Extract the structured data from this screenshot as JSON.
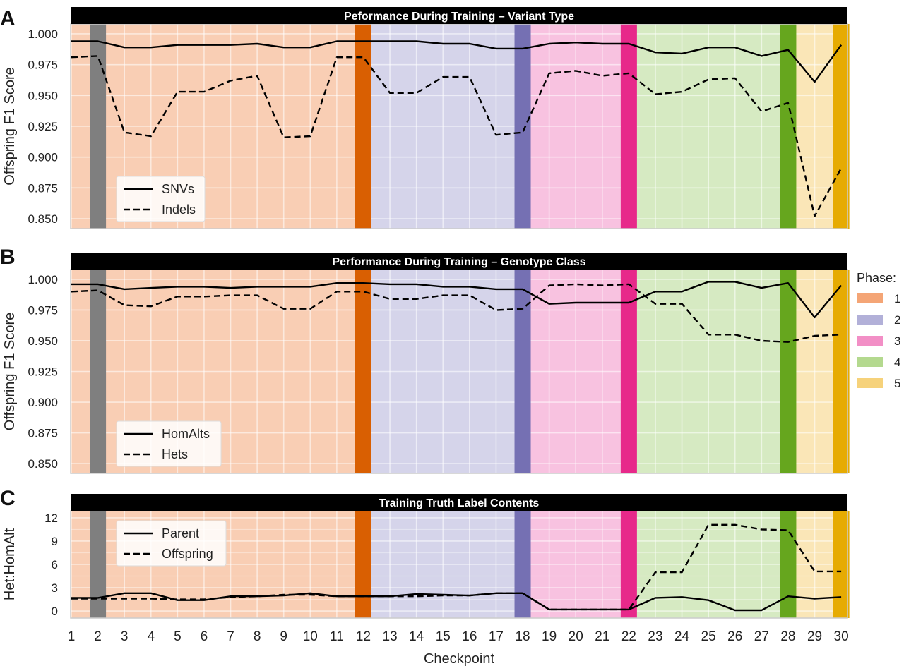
{
  "chart_data": [
    {
      "panel": "A",
      "type": "line",
      "title": "Peformance During Training – Variant Type",
      "ylabel": "Offspring F1 Score",
      "xlabel": "",
      "yticks": [
        "0.850",
        "0.875",
        "0.900",
        "0.925",
        "0.950",
        "0.975",
        "1.000"
      ],
      "ylim": [
        0.842,
        1.008
      ],
      "legend_position": "lower-left",
      "x": [
        1,
        2,
        3,
        4,
        5,
        6,
        7,
        8,
        9,
        10,
        11,
        12,
        13,
        14,
        15,
        16,
        17,
        18,
        19,
        20,
        21,
        22,
        23,
        24,
        25,
        26,
        27,
        28,
        29,
        30
      ],
      "series": [
        {
          "name": "SNVs",
          "style": "solid",
          "values": [
            0.994,
            0.994,
            0.989,
            0.989,
            0.991,
            0.991,
            0.991,
            0.992,
            0.989,
            0.989,
            0.994,
            0.994,
            0.994,
            0.994,
            0.992,
            0.992,
            0.988,
            0.988,
            0.992,
            0.993,
            0.992,
            0.992,
            0.985,
            0.984,
            0.989,
            0.989,
            0.982,
            0.987,
            0.961,
            0.991
          ]
        },
        {
          "name": "Indels",
          "style": "dashed",
          "values": [
            0.981,
            0.982,
            0.92,
            0.917,
            0.953,
            0.953,
            0.962,
            0.966,
            0.916,
            0.917,
            0.981,
            0.981,
            0.952,
            0.952,
            0.965,
            0.965,
            0.918,
            0.92,
            0.968,
            0.97,
            0.966,
            0.968,
            0.951,
            0.953,
            0.963,
            0.964,
            0.937,
            0.944,
            0.852,
            0.891
          ]
        }
      ]
    },
    {
      "panel": "B",
      "type": "line",
      "title": "Performance During Training – Genotype Class",
      "ylabel": "Offspring F1 Score",
      "xlabel": "",
      "yticks": [
        "0.850",
        "0.875",
        "0.900",
        "0.925",
        "0.950",
        "0.975",
        "1.000"
      ],
      "ylim": [
        0.842,
        1.008
      ],
      "legend_position": "lower-left",
      "x": [
        1,
        2,
        3,
        4,
        5,
        6,
        7,
        8,
        9,
        10,
        11,
        12,
        13,
        14,
        15,
        16,
        17,
        18,
        19,
        20,
        21,
        22,
        23,
        24,
        25,
        26,
        27,
        28,
        29,
        30
      ],
      "series": [
        {
          "name": "HomAlts",
          "style": "solid",
          "values": [
            0.996,
            0.996,
            0.992,
            0.993,
            0.994,
            0.994,
            0.993,
            0.994,
            0.994,
            0.994,
            0.997,
            0.997,
            0.996,
            0.996,
            0.994,
            0.994,
            0.992,
            0.992,
            0.98,
            0.981,
            0.981,
            0.981,
            0.99,
            0.99,
            0.998,
            0.998,
            0.993,
            0.997,
            0.969,
            0.995
          ]
        },
        {
          "name": "Hets",
          "style": "dashed",
          "values": [
            0.99,
            0.991,
            0.979,
            0.978,
            0.986,
            0.986,
            0.987,
            0.987,
            0.976,
            0.976,
            0.99,
            0.99,
            0.984,
            0.984,
            0.987,
            0.987,
            0.975,
            0.976,
            0.995,
            0.996,
            0.995,
            0.996,
            0.98,
            0.98,
            0.955,
            0.955,
            0.95,
            0.949,
            0.954,
            0.955
          ]
        }
      ]
    },
    {
      "panel": "C",
      "type": "line",
      "title": "Training Truth Label Contents",
      "ylabel": "Het:HomAlt",
      "xlabel": "Checkpoint",
      "yticks": [
        "0",
        "3",
        "6",
        "9",
        "12"
      ],
      "ylim": [
        -0.9,
        12.9
      ],
      "legend_position": "upper-left",
      "x": [
        1,
        2,
        3,
        4,
        5,
        6,
        7,
        8,
        9,
        10,
        11,
        12,
        13,
        14,
        15,
        16,
        17,
        18,
        19,
        20,
        21,
        22,
        23,
        24,
        25,
        26,
        27,
        28,
        29,
        30
      ],
      "xticks": [
        "1",
        "2",
        "3",
        "4",
        "5",
        "6",
        "7",
        "8",
        "9",
        "10",
        "11",
        "12",
        "13",
        "14",
        "15",
        "16",
        "17",
        "18",
        "19",
        "20",
        "21",
        "22",
        "23",
        "24",
        "25",
        "26",
        "27",
        "28",
        "29",
        "30"
      ],
      "series": [
        {
          "name": "Parent",
          "style": "solid",
          "values": [
            1.7,
            1.7,
            2.3,
            2.3,
            1.4,
            1.4,
            1.9,
            1.9,
            2.0,
            2.3,
            1.9,
            1.9,
            1.9,
            2.2,
            2.1,
            2.0,
            2.3,
            2.3,
            0.2,
            0.2,
            0.2,
            0.2,
            1.7,
            1.8,
            1.4,
            0.1,
            0.1,
            1.9,
            1.6,
            1.8
          ]
        },
        {
          "name": "Offspring",
          "style": "dashed",
          "values": [
            1.6,
            1.6,
            1.6,
            1.6,
            1.5,
            1.5,
            1.8,
            1.9,
            2.1,
            2.1,
            1.9,
            1.9,
            1.9,
            1.9,
            2.0,
            2.0,
            2.3,
            2.3,
            0.2,
            0.2,
            0.2,
            0.2,
            5.0,
            5.0,
            11.1,
            11.1,
            10.5,
            10.4,
            5.1,
            5.1
          ]
        }
      ]
    }
  ],
  "panel_letters": [
    "A",
    "B",
    "C"
  ],
  "phase_legend": {
    "title": "Phase:",
    "entries": [
      {
        "label": "1",
        "color": "#f4a576"
      },
      {
        "label": "2",
        "color": "#b2b0d8"
      },
      {
        "label": "3",
        "color": "#f28fc6"
      },
      {
        "label": "4",
        "color": "#b4d98f"
      },
      {
        "label": "5",
        "color": "#f6d27b"
      }
    ]
  },
  "phase_background": [
    {
      "phase": "1",
      "from": 1,
      "to": 12,
      "color": "#f4a576"
    },
    {
      "phase": "2",
      "from": 12,
      "to": 18,
      "color": "#b2b0d8"
    },
    {
      "phase": "3",
      "from": 18,
      "to": 22,
      "color": "#f28fc6"
    },
    {
      "phase": "4",
      "from": 22,
      "to": 28,
      "color": "#b4d98f"
    },
    {
      "phase": "5",
      "from": 28,
      "to": 30,
      "color": "#f6d27b"
    }
  ],
  "checkpoint_markers": [
    {
      "x": 2,
      "color": "#7f7f7f"
    },
    {
      "x": 12,
      "color": "#d95f02"
    },
    {
      "x": 18,
      "color": "#7570b3"
    },
    {
      "x": 22,
      "color": "#e7298a"
    },
    {
      "x": 28,
      "color": "#66a61e"
    },
    {
      "x": 30,
      "color": "#e6ab02"
    }
  ]
}
